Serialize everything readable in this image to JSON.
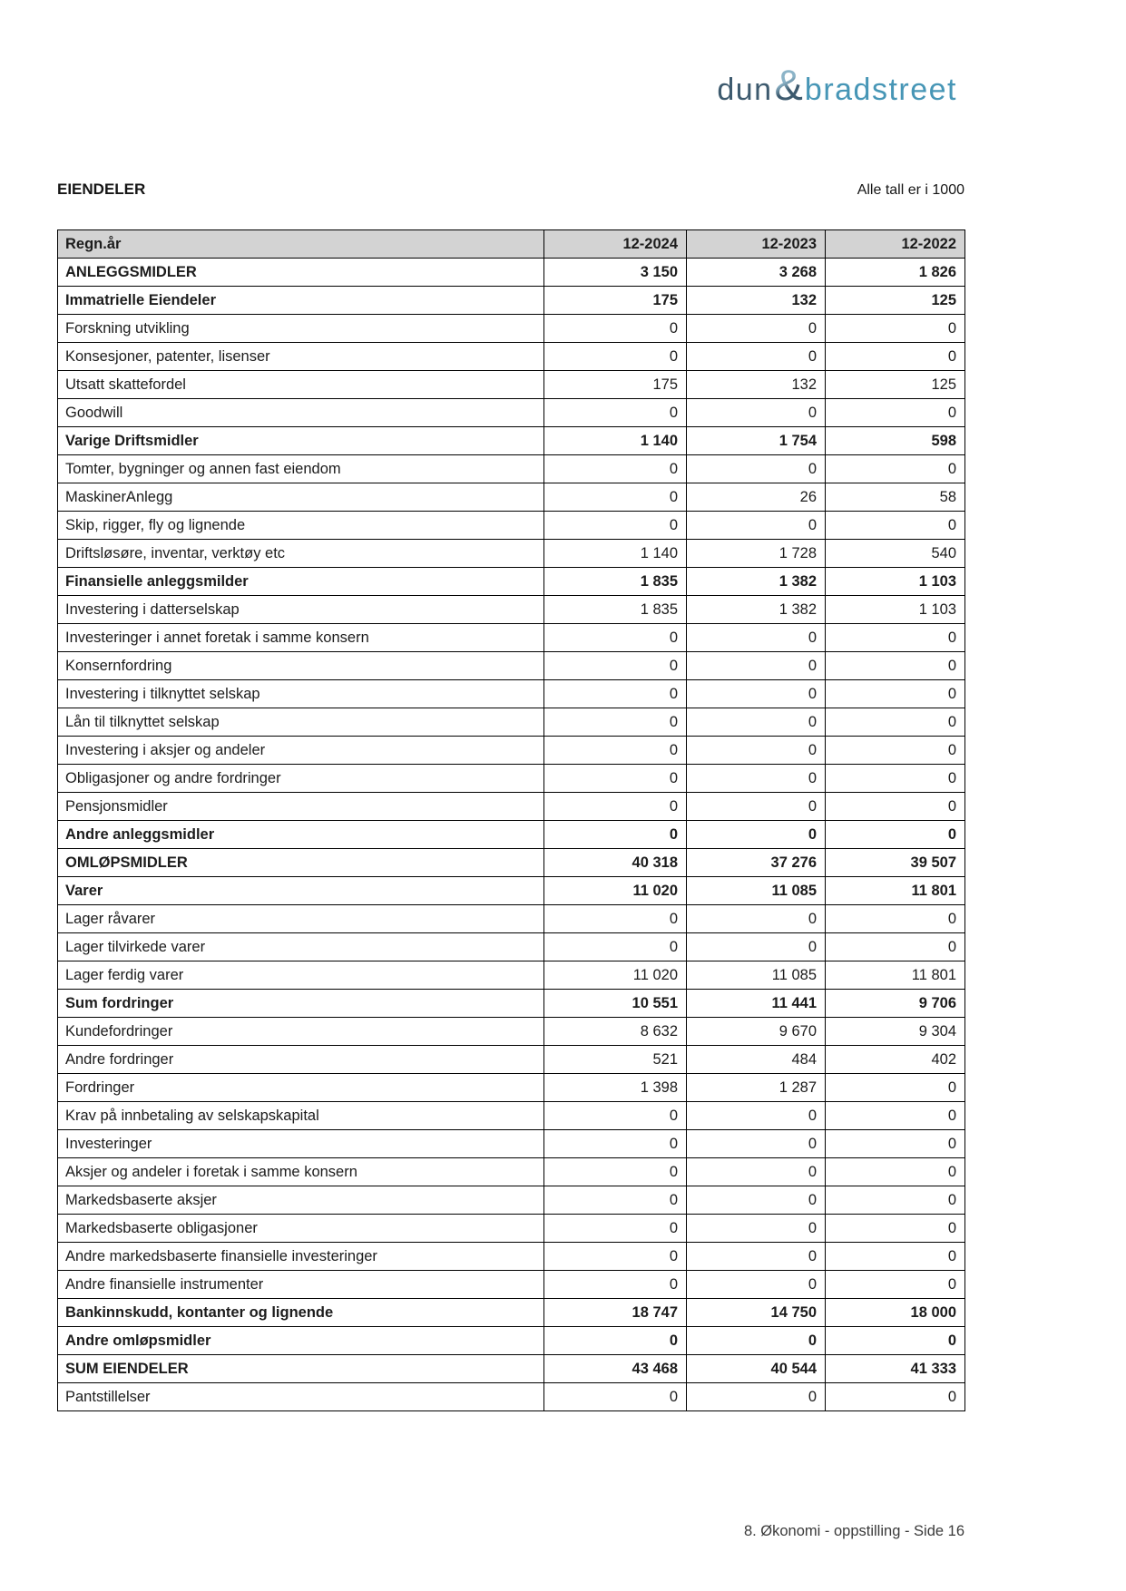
{
  "logo": {
    "dun": "dun",
    "amp": "&",
    "bradstreet": "bradstreet"
  },
  "colors": {
    "logo_dark": "#3d5a6e",
    "logo_light": "#4796b6",
    "logo_amp_light": "#8cb4c8",
    "table_header_bg": "#d3d3d3",
    "border": "#000000"
  },
  "header": {
    "title": "EIENDELER",
    "note": "Alle tall er i 1000"
  },
  "table": {
    "columns": [
      "Regn.år",
      "12-2024",
      "12-2023",
      "12-2022"
    ],
    "rows": [
      {
        "label": "ANLEGGSMIDLER",
        "values": [
          "3 150",
          "3 268",
          "1 826"
        ],
        "bold": true
      },
      {
        "label": "Immatrielle Eiendeler",
        "values": [
          "175",
          "132",
          "125"
        ],
        "bold": true
      },
      {
        "label": "Forskning utvikling",
        "values": [
          "0",
          "0",
          "0"
        ],
        "bold": false
      },
      {
        "label": "Konsesjoner, patenter, lisenser",
        "values": [
          "0",
          "0",
          "0"
        ],
        "bold": false
      },
      {
        "label": "Utsatt skattefordel",
        "values": [
          "175",
          "132",
          "125"
        ],
        "bold": false
      },
      {
        "label": "Goodwill",
        "values": [
          "0",
          "0",
          "0"
        ],
        "bold": false
      },
      {
        "label": "Varige Driftsmidler",
        "values": [
          "1 140",
          "1 754",
          "598"
        ],
        "bold": true
      },
      {
        "label": "Tomter, bygninger og annen fast eiendom",
        "values": [
          "0",
          "0",
          "0"
        ],
        "bold": false
      },
      {
        "label": "MaskinerAnlegg",
        "values": [
          "0",
          "26",
          "58"
        ],
        "bold": false
      },
      {
        "label": "Skip, rigger, fly og lignende",
        "values": [
          "0",
          "0",
          "0"
        ],
        "bold": false
      },
      {
        "label": "Driftsløsøre, inventar, verktøy etc",
        "values": [
          "1 140",
          "1 728",
          "540"
        ],
        "bold": false
      },
      {
        "label": "Finansielle anleggsmilder",
        "values": [
          "1 835",
          "1 382",
          "1 103"
        ],
        "bold": true
      },
      {
        "label": "Investering i datterselskap",
        "values": [
          "1 835",
          "1 382",
          "1 103"
        ],
        "bold": false
      },
      {
        "label": "Investeringer i annet foretak i samme konsern",
        "values": [
          "0",
          "0",
          "0"
        ],
        "bold": false
      },
      {
        "label": "Konsernfordring",
        "values": [
          "0",
          "0",
          "0"
        ],
        "bold": false
      },
      {
        "label": "Investering i tilknyttet selskap",
        "values": [
          "0",
          "0",
          "0"
        ],
        "bold": false
      },
      {
        "label": "Lån til tilknyttet selskap",
        "values": [
          "0",
          "0",
          "0"
        ],
        "bold": false
      },
      {
        "label": "Investering i aksjer og andeler",
        "values": [
          "0",
          "0",
          "0"
        ],
        "bold": false
      },
      {
        "label": "Obligasjoner og andre fordringer",
        "values": [
          "0",
          "0",
          "0"
        ],
        "bold": false
      },
      {
        "label": "Pensjonsmidler",
        "values": [
          "0",
          "0",
          "0"
        ],
        "bold": false
      },
      {
        "label": "Andre anleggsmidler",
        "values": [
          "0",
          "0",
          "0"
        ],
        "bold": true
      },
      {
        "label": "OMLØPSMIDLER",
        "values": [
          "40 318",
          "37 276",
          "39 507"
        ],
        "bold": true
      },
      {
        "label": "Varer",
        "values": [
          "11 020",
          "11 085",
          "11 801"
        ],
        "bold": true
      },
      {
        "label": "Lager råvarer",
        "values": [
          "0",
          "0",
          "0"
        ],
        "bold": false
      },
      {
        "label": "Lager tilvirkede varer",
        "values": [
          "0",
          "0",
          "0"
        ],
        "bold": false
      },
      {
        "label": "Lager ferdig varer",
        "values": [
          "11 020",
          "11 085",
          "11 801"
        ],
        "bold": false
      },
      {
        "label": "Sum fordringer",
        "values": [
          "10 551",
          "11 441",
          "9 706"
        ],
        "bold": true
      },
      {
        "label": "Kundefordringer",
        "values": [
          "8 632",
          "9 670",
          "9 304"
        ],
        "bold": false
      },
      {
        "label": "Andre fordringer",
        "values": [
          "521",
          "484",
          "402"
        ],
        "bold": false
      },
      {
        "label": "Fordringer",
        "values": [
          "1 398",
          "1 287",
          "0"
        ],
        "bold": false
      },
      {
        "label": "Krav på innbetaling av selskapskapital",
        "values": [
          "0",
          "0",
          "0"
        ],
        "bold": false
      },
      {
        "label": "Investeringer",
        "values": [
          "0",
          "0",
          "0"
        ],
        "bold": false
      },
      {
        "label": "Aksjer og andeler i foretak i samme konsern",
        "values": [
          "0",
          "0",
          "0"
        ],
        "bold": false
      },
      {
        "label": "Markedsbaserte aksjer",
        "values": [
          "0",
          "0",
          "0"
        ],
        "bold": false
      },
      {
        "label": "Markedsbaserte obligasjoner",
        "values": [
          "0",
          "0",
          "0"
        ],
        "bold": false
      },
      {
        "label": "Andre markedsbaserte finansielle investeringer",
        "values": [
          "0",
          "0",
          "0"
        ],
        "bold": false
      },
      {
        "label": "Andre finansielle instrumenter",
        "values": [
          "0",
          "0",
          "0"
        ],
        "bold": false
      },
      {
        "label": "Bankinnskudd, kontanter og lignende",
        "values": [
          "18 747",
          "14 750",
          "18 000"
        ],
        "bold": true
      },
      {
        "label": "Andre omløpsmidler",
        "values": [
          "0",
          "0",
          "0"
        ],
        "bold": true
      },
      {
        "label": "SUM EIENDELER",
        "values": [
          "43 468",
          "40 544",
          "41 333"
        ],
        "bold": true
      },
      {
        "label": "Pantstillelser",
        "values": [
          "0",
          "0",
          "0"
        ],
        "bold": false
      }
    ]
  },
  "footer": {
    "text": "8. Økonomi - oppstilling - Side 16"
  }
}
